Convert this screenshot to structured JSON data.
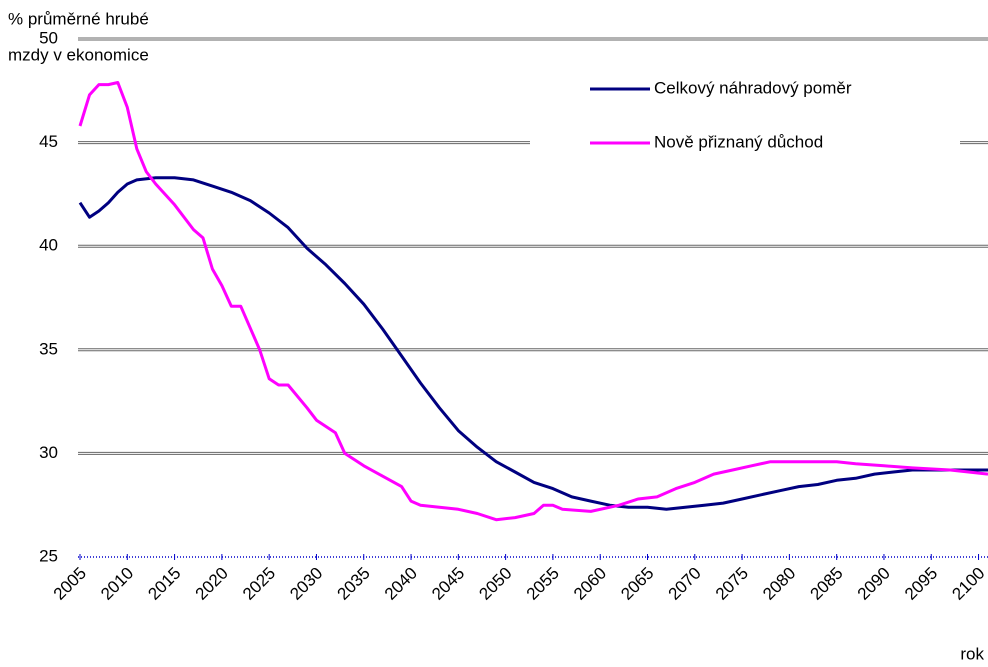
{
  "chart_data": {
    "type": "line",
    "y_label": [
      "% průměrné hrubé",
      "mzdy v ekonomice"
    ],
    "x_label": "rok",
    "xlim": [
      2005,
      2101
    ],
    "xticks": [
      2005,
      2010,
      2015,
      2020,
      2025,
      2030,
      2035,
      2040,
      2045,
      2050,
      2055,
      2060,
      2065,
      2070,
      2075,
      2080,
      2085,
      2090,
      2095,
      2100
    ],
    "ylim": [
      25,
      50
    ],
    "yticks": [
      25,
      30,
      35,
      40,
      45,
      50
    ],
    "grid": true,
    "legend": "top-right",
    "series": [
      {
        "name": "Celkový náhradový poměr",
        "color": "#000080",
        "x": [
          2005,
          2006,
          2007,
          2008,
          2009,
          2010,
          2011,
          2013,
          2015,
          2017,
          2019,
          2021,
          2023,
          2025,
          2027,
          2029,
          2031,
          2033,
          2035,
          2037,
          2039,
          2041,
          2043,
          2045,
          2047,
          2049,
          2051,
          2053,
          2055,
          2057,
          2059,
          2061,
          2063,
          2065,
          2067,
          2069,
          2071,
          2073,
          2075,
          2077,
          2079,
          2081,
          2083,
          2085,
          2087,
          2089,
          2091,
          2093,
          2095,
          2097,
          2099,
          2101
        ],
        "values": [
          42.1,
          41.4,
          41.7,
          42.1,
          42.6,
          43.0,
          43.2,
          43.3,
          43.3,
          43.2,
          42.9,
          42.6,
          42.2,
          41.6,
          40.9,
          39.9,
          39.1,
          38.2,
          37.2,
          36.0,
          34.7,
          33.4,
          32.2,
          31.1,
          30.3,
          29.6,
          29.1,
          28.6,
          28.3,
          27.9,
          27.7,
          27.5,
          27.4,
          27.4,
          27.3,
          27.4,
          27.5,
          27.6,
          27.8,
          28.0,
          28.2,
          28.4,
          28.5,
          28.7,
          28.8,
          29.0,
          29.1,
          29.2,
          29.2,
          29.2,
          29.2,
          29.2
        ]
      },
      {
        "name": "Nově přiznaný důchod",
        "color": "#ff00ff",
        "x": [
          2005,
          2006,
          2007,
          2008,
          2009,
          2010,
          2011,
          2012,
          2013,
          2015,
          2017,
          2018,
          2019,
          2020,
          2021,
          2022,
          2024,
          2025,
          2026,
          2027,
          2029,
          2030,
          2032,
          2033,
          2035,
          2037,
          2039,
          2040,
          2041,
          2043,
          2045,
          2047,
          2049,
          2051,
          2053,
          2054,
          2055,
          2056,
          2059,
          2062,
          2064,
          2066,
          2068,
          2070,
          2072,
          2074,
          2076,
          2078,
          2080,
          2085,
          2087,
          2090,
          2093,
          2097,
          2101
        ],
        "values": [
          45.8,
          47.3,
          47.8,
          47.8,
          47.9,
          46.7,
          44.7,
          43.6,
          43.0,
          42.0,
          40.8,
          40.4,
          38.9,
          38.1,
          37.1,
          37.1,
          35.0,
          33.6,
          33.3,
          33.3,
          32.2,
          31.6,
          31.0,
          30.0,
          29.4,
          28.9,
          28.4,
          27.7,
          27.5,
          27.4,
          27.3,
          27.1,
          26.8,
          26.9,
          27.1,
          27.5,
          27.5,
          27.3,
          27.2,
          27.5,
          27.8,
          27.9,
          28.3,
          28.6,
          29.0,
          29.2,
          29.4,
          29.6,
          29.6,
          29.6,
          29.5,
          29.4,
          29.3,
          29.2,
          29.0
        ]
      }
    ]
  }
}
